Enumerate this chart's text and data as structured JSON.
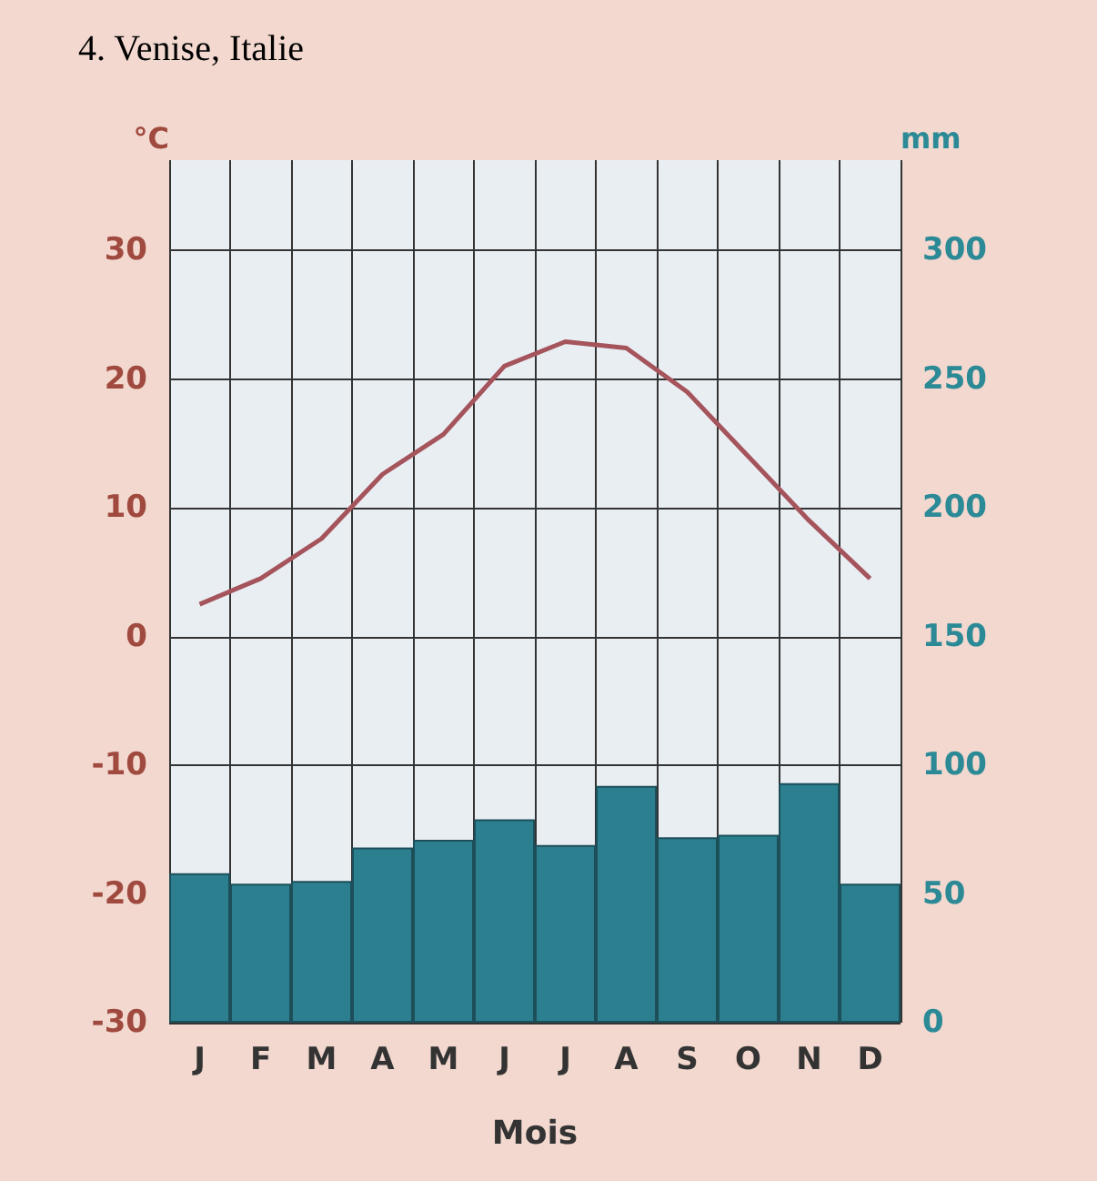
{
  "chart_data": {
    "type": "bar",
    "title": "4. Venise, Italie",
    "xlabel": "Mois",
    "ylabel": "°C",
    "y2label": "mm",
    "categories": [
      "J",
      "F",
      "M",
      "A",
      "M",
      "J",
      "J",
      "A",
      "S",
      "O",
      "N",
      "D"
    ],
    "series": [
      {
        "axis": "y2",
        "color": "#2b7f8e",
        "values": [
          58,
          54,
          55,
          68,
          71,
          79,
          69,
          92,
          72,
          73,
          93,
          54
        ]
      },
      {
        "type": "line",
        "axis": "y",
        "color": "#a5545c",
        "values": [
          2.5,
          4.5,
          7.6,
          12.6,
          15.7,
          21,
          22.9,
          22.4,
          19,
          14,
          9,
          4.5
        ]
      }
    ],
    "ylim": [
      -30,
      37
    ],
    "yticks": [
      -30,
      -20,
      -10,
      0,
      10,
      20,
      30
    ],
    "y2lim": [
      0,
      335
    ],
    "y2ticks": [
      0,
      50,
      100,
      150,
      200,
      250,
      300
    ],
    "grid": true,
    "marker": "none",
    "line_style": "solid"
  }
}
